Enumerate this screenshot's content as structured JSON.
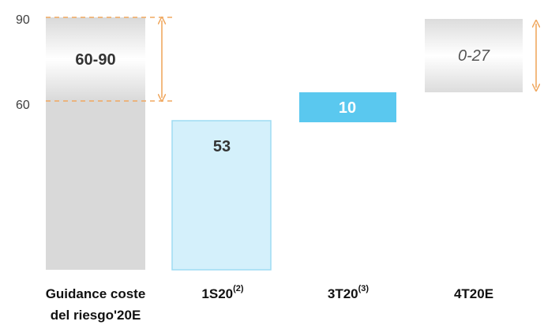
{
  "chart_data": {
    "type": "bar",
    "y_ticks": [
      "90",
      "60"
    ],
    "ylim": [
      0,
      90
    ],
    "categories": [
      {
        "label_main": "Guidance coste",
        "label_line2": "del riesgo'20E",
        "sup": ""
      },
      {
        "label_main": "1S20",
        "label_line2": "",
        "sup": "(2)"
      },
      {
        "label_main": "3T20",
        "label_line2": "",
        "sup": "(3)"
      },
      {
        "label_main": "4T20E",
        "label_line2": "",
        "sup": ""
      }
    ],
    "bars": [
      {
        "kind": "range",
        "low": 60,
        "high": 90,
        "label": "60-90"
      },
      {
        "kind": "value",
        "value": 53,
        "label": "53"
      },
      {
        "kind": "waterfall",
        "base": 53,
        "value": 10,
        "label": "10"
      },
      {
        "kind": "range-open",
        "low": 63,
        "high": 90,
        "label": "0-27"
      }
    ],
    "colors": {
      "guidance": "#d9d9d9",
      "s1": "#d4f0fb",
      "s1_border": "#9edcf3",
      "t3": "#5ac8ef",
      "arrow": "#f0a860"
    }
  }
}
